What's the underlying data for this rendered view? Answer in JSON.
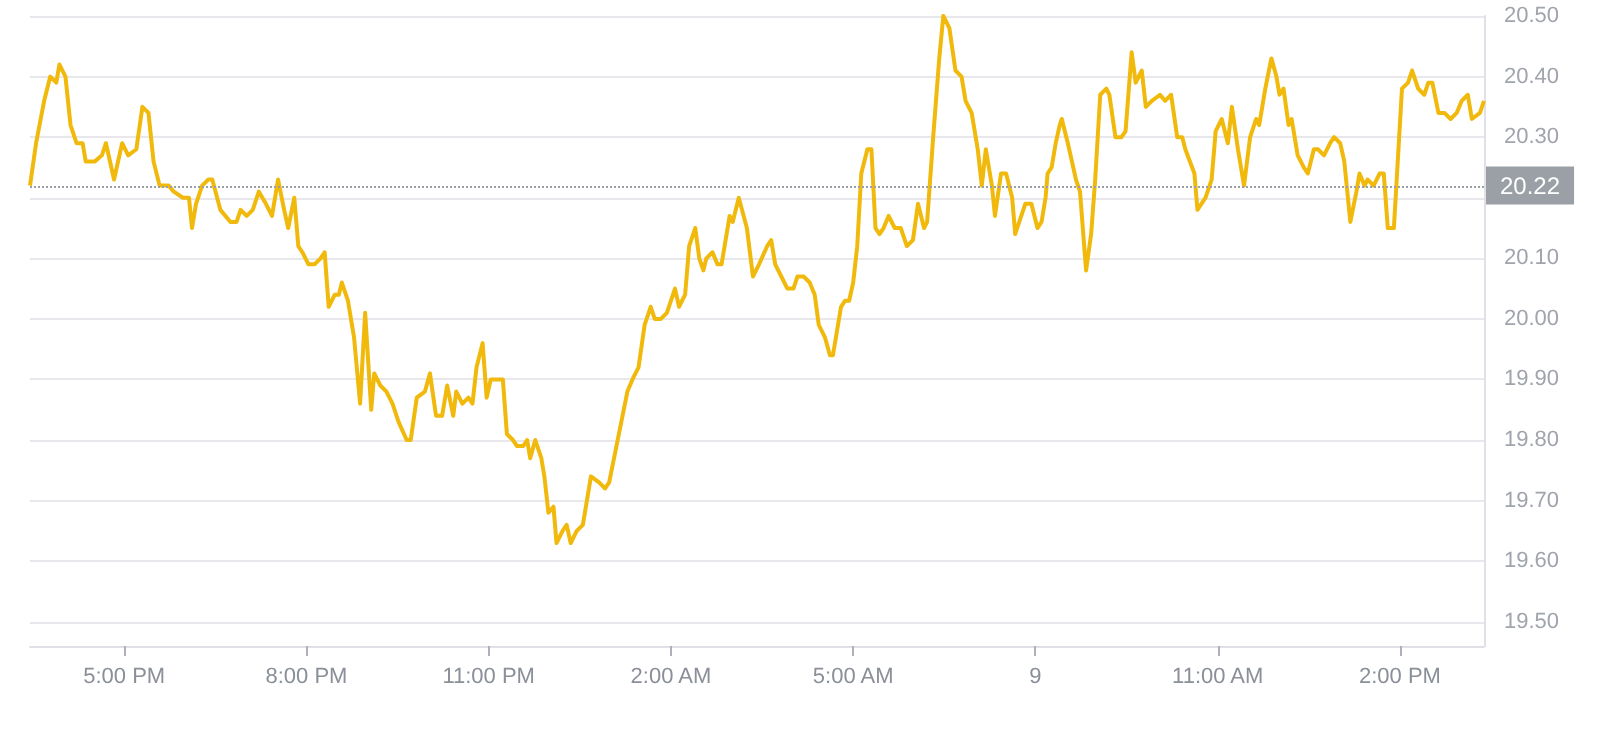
{
  "chart_data": {
    "type": "line",
    "x": [
      "--01-08T15:27",
      "--01-08T15:33",
      "--01-08T15:41",
      "--01-08T15:47",
      "--01-08T15:53",
      "--01-08T15:56",
      "--01-08T16:02",
      "--01-08T16:07",
      "--01-08T16:13",
      "--01-08T16:19",
      "--01-08T16:22",
      "--01-08T16:31",
      "--01-08T16:38",
      "--01-08T16:42",
      "--01-08T16:50",
      "--01-08T16:58",
      "--01-08T17:04",
      "--01-08T17:12",
      "--01-08T17:18",
      "--01-08T17:24",
      "--01-08T17:29",
      "--01-08T17:35",
      "--01-08T17:44",
      "--01-08T17:49",
      "--01-08T17:58",
      "--01-08T18:04",
      "--01-08T18:07",
      "--01-08T18:11",
      "--01-08T18:17",
      "--01-08T18:23",
      "--01-08T18:27",
      "--01-08T18:35",
      "--01-08T18:45",
      "--01-08T18:51",
      "--01-08T18:55",
      "--01-08T19:01",
      "--01-08T19:07",
      "--01-08T19:13",
      "--01-08T19:20",
      "--01-08T19:26",
      "--01-08T19:32",
      "--01-08T19:38",
      "--01-08T19:42",
      "--01-08T19:48",
      "--01-08T19:52",
      "--01-08T19:56",
      "--01-08T20:02",
      "--01-08T20:08",
      "--01-08T20:14",
      "--01-08T20:18",
      "--01-08T20:22",
      "--01-08T20:28",
      "--01-08T20:32",
      "--01-08T20:35",
      "--01-08T20:41",
      "--01-08T20:47",
      "--01-08T20:53",
      "--01-08T20:58",
      "--01-08T21:04",
      "--01-08T21:07",
      "--01-08T21:13",
      "--01-08T21:19",
      "--01-08T21:25",
      "--01-08T21:31",
      "--01-08T21:39",
      "--01-08T21:43",
      "--01-08T21:49",
      "--01-08T21:57",
      "--01-08T22:02",
      "--01-08T22:08",
      "--01-08T22:14",
      "--01-08T22:19",
      "--01-08T22:25",
      "--01-08T22:28",
      "--01-08T22:34",
      "--01-08T22:40",
      "--01-08T22:44",
      "--01-08T22:48",
      "--01-08T22:54",
      "--01-08T22:58",
      "--01-08T23:02",
      "--01-08T23:10",
      "--01-08T23:14",
      "--01-08T23:18",
      "--01-08T23:24",
      "--01-08T23:28",
      "--01-08T23:34",
      "--01-08T23:38",
      "--01-08T23:41",
      "--01-08T23:46",
      "--01-08T23:52",
      "--01-08T23:55",
      "--01-08T23:59",
      "--01-09T00:04",
      "--01-09T00:07",
      "--01-09T00:13",
      "--01-09T00:17",
      "--01-09T00:21",
      "--01-09T00:27",
      "--01-09T00:33",
      "--01-09T00:41",
      "--01-09T00:49",
      "--01-09T00:55",
      "--01-09T00:59",
      "--01-09T01:05",
      "--01-09T01:11",
      "--01-09T01:17",
      "--01-09T01:22",
      "--01-09T01:28",
      "--01-09T01:34",
      "--01-09T01:40",
      "--01-09T01:44",
      "--01-09T01:50",
      "--01-09T01:56",
      "--01-09T02:04",
      "--01-09T02:08",
      "--01-09T02:14",
      "--01-09T02:18",
      "--01-09T02:24",
      "--01-09T02:28",
      "--01-09T02:32",
      "--01-09T02:35",
      "--01-09T02:41",
      "--01-09T02:46",
      "--01-09T02:50",
      "--01-09T02:58",
      "--01-09T03:01",
      "--01-09T03:07",
      "--01-09T03:15",
      "--01-09T03:21",
      "--01-09T03:27",
      "--01-09T03:35",
      "--01-09T03:39",
      "--01-09T03:43",
      "--01-09T03:49",
      "--01-09T03:55",
      "--01-09T04:01",
      "--01-09T04:05",
      "--01-09T04:11",
      "--01-09T04:17",
      "--01-09T04:22",
      "--01-09T04:26",
      "--01-09T04:32",
      "--01-09T04:37",
      "--01-09T04:40",
      "--01-09T04:48",
      "--01-09T04:52",
      "--01-09T04:56",
      "--01-09T05:00",
      "--01-09T05:04",
      "--01-09T05:08",
      "--01-09T05:14",
      "--01-09T05:18",
      "--01-09T05:22",
      "--01-09T05:26",
      "--01-09T05:30",
      "--01-09T05:35",
      "--01-09T05:41",
      "--01-09T05:47",
      "--01-09T05:53",
      "--01-09T05:59",
      "--01-09T06:04",
      "--01-09T06:10",
      "--01-09T06:13",
      "--01-09T06:19",
      "--01-09T06:25",
      "--01-09T06:29",
      "--01-09T06:35",
      "--01-09T06:41",
      "--01-09T06:47",
      "--01-09T06:51",
      "--01-09T06:57",
      "--01-09T07:03",
      "--01-09T07:07",
      "--01-09T07:11",
      "--01-09T07:17",
      "--01-09T07:20",
      "--01-09T07:26",
      "--01-09T07:31",
      "--01-09T07:37",
      "--01-09T07:40",
      "--01-09T07:44",
      "--01-09T07:50",
      "--01-09T07:56",
      "--01-09T08:02",
      "--01-09T08:06",
      "--01-09T08:10",
      "--01-09T08:12",
      "--01-09T08:16",
      "--01-09T08:20",
      "--01-09T08:24",
      "--01-09T08:26",
      "--01-09T08:32",
      "--01-09T08:36",
      "--01-09T08:40",
      "--01-09T08:44",
      "--01-09T08:50",
      "--01-09T08:55",
      "--01-09T08:59",
      "--01-09T09:04",
      "--01-09T09:10",
      "--01-09T09:13",
      "--01-09T09:19",
      "--01-09T09:25",
      "--01-09T09:29",
      "--01-09T09:35",
      "--01-09T09:39",
      "--01-09T09:45",
      "--01-09T09:49",
      "--01-09T09:55",
      "--01-09T10:03",
      "--01-09T10:08",
      "--01-09T10:14",
      "--01-09T10:20",
      "--01-09T10:25",
      "--01-09T10:28",
      "--01-09T10:37",
      "--01-09T10:40",
      "--01-09T10:48",
      "--01-09T10:54",
      "--01-09T10:58",
      "--01-09T11:04",
      "--01-09T11:10",
      "--01-09T11:14",
      "--01-09T11:20",
      "--01-09T11:26",
      "--01-09T11:32",
      "--01-09T11:38",
      "--01-09T11:41",
      "--01-09T11:47",
      "--01-09T11:53",
      "--01-09T11:58",
      "--01-09T12:01",
      "--01-09T12:05",
      "--01-09T12:10",
      "--01-09T12:13",
      "--01-09T12:19",
      "--01-09T12:25",
      "--01-09T12:29",
      "--01-09T12:35",
      "--01-09T12:39",
      "--01-09T12:45",
      "--01-09T12:51",
      "--01-09T12:55",
      "--01-09T13:01",
      "--01-09T13:05",
      "--01-09T13:11",
      "--01-09T13:17",
      "--01-09T13:20",
      "--01-09T13:25",
      "--01-09T13:28",
      "--01-09T13:34",
      "--01-09T13:40",
      "--01-09T13:44",
      "--01-09T13:48",
      "--01-09T13:54",
      "--01-09T14:02",
      "--01-09T14:08",
      "--01-09T14:12",
      "--01-09T14:18",
      "--01-09T14:24",
      "--01-09T14:28",
      "--01-09T14:32",
      "--01-09T14:38",
      "--01-09T14:44",
      "--01-09T14:50",
      "--01-09T14:56",
      "--01-09T15:01",
      "--01-09T15:07",
      "--01-09T15:11",
      "--01-09T15:19",
      "--01-09T15:23"
    ],
    "series": [
      {
        "color": "#f0b90b",
        "values": [
          20.22,
          20.29,
          20.36,
          20.4,
          20.39,
          20.42,
          20.4,
          20.32,
          20.29,
          20.29,
          20.26,
          20.26,
          20.27,
          20.29,
          20.23,
          20.29,
          20.27,
          20.28,
          20.35,
          20.34,
          20.26,
          20.22,
          20.22,
          20.21,
          20.2,
          20.2,
          20.15,
          20.19,
          20.22,
          20.23,
          20.23,
          20.18,
          20.16,
          20.16,
          20.18,
          20.17,
          20.18,
          20.21,
          20.19,
          20.17,
          20.23,
          20.18,
          20.15,
          20.2,
          20.12,
          20.11,
          20.09,
          20.09,
          20.1,
          20.11,
          20.02,
          20.04,
          20.04,
          20.06,
          20.03,
          19.97,
          19.86,
          20.01,
          19.85,
          19.91,
          19.89,
          19.88,
          19.86,
          19.83,
          19.8,
          19.8,
          19.87,
          19.88,
          19.91,
          19.84,
          19.84,
          19.89,
          19.84,
          19.88,
          19.86,
          19.87,
          19.86,
          19.92,
          19.96,
          19.87,
          19.9,
          19.9,
          19.9,
          19.81,
          19.8,
          19.79,
          19.79,
          19.8,
          19.77,
          19.8,
          19.77,
          19.74,
          19.68,
          19.69,
          19.63,
          19.65,
          19.66,
          19.63,
          19.65,
          19.66,
          19.74,
          19.73,
          19.72,
          19.73,
          19.78,
          19.83,
          19.88,
          19.9,
          19.92,
          19.99,
          20.02,
          20.0,
          20.0,
          20.01,
          20.05,
          20.02,
          20.04,
          20.12,
          20.15,
          20.1,
          20.08,
          20.1,
          20.11,
          20.09,
          20.09,
          20.17,
          20.16,
          20.2,
          20.15,
          20.07,
          20.09,
          20.12,
          20.13,
          20.09,
          20.07,
          20.05,
          20.05,
          20.07,
          20.07,
          20.06,
          20.04,
          19.99,
          19.97,
          19.94,
          19.94,
          20.02,
          20.03,
          20.03,
          20.06,
          20.12,
          20.24,
          20.28,
          20.28,
          20.15,
          20.14,
          20.15,
          20.17,
          20.15,
          20.15,
          20.12,
          20.13,
          20.19,
          20.15,
          20.16,
          20.3,
          20.43,
          20.5,
          20.48,
          20.41,
          20.4,
          20.36,
          20.34,
          20.28,
          20.22,
          20.28,
          20.22,
          20.17,
          20.24,
          20.24,
          20.2,
          20.14,
          20.16,
          20.19,
          20.19,
          20.15,
          20.16,
          20.2,
          20.24,
          20.25,
          20.29,
          20.32,
          20.33,
          20.29,
          20.26,
          20.23,
          20.21,
          20.08,
          20.14,
          20.23,
          20.37,
          20.38,
          20.37,
          20.3,
          20.3,
          20.31,
          20.44,
          20.39,
          20.41,
          20.35,
          20.36,
          20.37,
          20.36,
          20.37,
          20.3,
          20.3,
          20.28,
          20.24,
          20.18,
          20.2,
          20.23,
          20.31,
          20.33,
          20.29,
          20.35,
          20.28,
          20.22,
          20.3,
          20.33,
          20.32,
          20.38,
          20.43,
          20.4,
          20.37,
          20.38,
          20.32,
          20.33,
          20.27,
          20.25,
          20.24,
          20.28,
          20.28,
          20.27,
          20.29,
          20.3,
          20.29,
          20.26,
          20.16,
          20.21,
          20.24,
          20.22,
          20.23,
          20.22,
          20.24,
          20.24,
          20.15,
          20.15,
          20.38,
          20.39,
          20.41,
          20.38,
          20.37,
          20.39,
          20.39,
          20.34,
          20.34,
          20.33,
          20.34,
          20.36,
          20.37,
          20.33,
          20.34,
          20.36
        ]
      }
    ],
    "xlim": [
      "--01-08T15:27",
      "--01-09T15:23"
    ],
    "xticks": [
      {
        "value": "--01-08T17:00",
        "label": "5:00 PM"
      },
      {
        "value": "--01-08T20:00",
        "label": "8:00 PM"
      },
      {
        "value": "--01-08T23:00",
        "label": "11:00 PM"
      },
      {
        "value": "--01-09T02:00",
        "label": "2:00 AM"
      },
      {
        "value": "--01-09T05:00",
        "label": "5:00 AM"
      },
      {
        "value": "--01-09T08:00",
        "label": "9"
      },
      {
        "value": "--01-09T11:00",
        "label": "11:00 AM"
      },
      {
        "value": "--01-09T14:00",
        "label": "2:00 PM"
      }
    ],
    "ylim": [
      19.46,
      20.5
    ],
    "yticks": [
      {
        "value": 19.5,
        "label": "19.50"
      },
      {
        "value": 19.6,
        "label": "19.60"
      },
      {
        "value": 19.7,
        "label": "19.70"
      },
      {
        "value": 19.8,
        "label": "19.80"
      },
      {
        "value": 19.9,
        "label": "19.90"
      },
      {
        "value": 20.0,
        "label": "20.00"
      },
      {
        "value": 20.1,
        "label": "20.10"
      },
      {
        "value": 20.2,
        "label": null
      },
      {
        "value": 20.3,
        "label": "20.30"
      },
      {
        "value": 20.4,
        "label": "20.40"
      },
      {
        "value": 20.5,
        "label": "20.50"
      }
    ],
    "ref_lines": [
      {
        "axis": "y",
        "value": 20.22,
        "label": "20.22",
        "color": "#9aa0a6",
        "line_style": "dotted"
      }
    ],
    "grid": "y",
    "marker": "none",
    "line_style": "solid"
  }
}
